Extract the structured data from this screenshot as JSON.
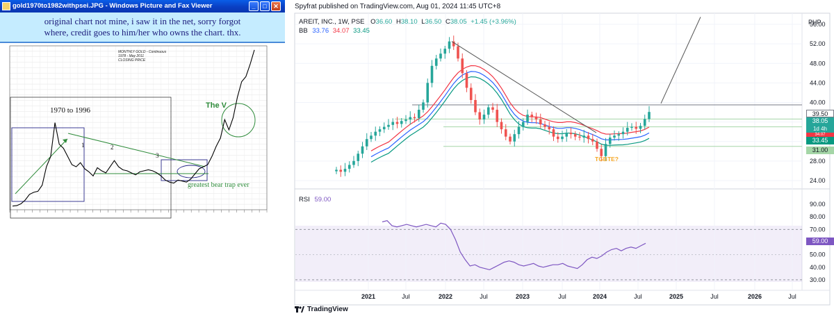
{
  "viewer": {
    "title": "gold1970to1982withpsei.JPG - Windows Picture and Fax Viewer",
    "minimize": "_",
    "maximize": "□",
    "close": "✕",
    "caption_line1": "original chart not mine, i saw it in the net, sorry forgot",
    "caption_line2": "where, credit goes to him/her who owns the chart. thx.",
    "chart_title1": "MONTHLY GOLD - Continuous",
    "chart_title2": "1978 - May 2011",
    "chart_title3": "CLOSING PRICE",
    "annot_1970": "1970 to 1996",
    "annot_v": "The V",
    "annot_trap": "greatest bear trap ever",
    "annot_n1": "1",
    "annot_n2": "2",
    "annot_n3": "3"
  },
  "tv": {
    "published": "Spyfrat published on TradingView.com, Aug 01, 2024 11:45 UTC+8",
    "symbol_line": "AREIT, INC., 1W, PSE",
    "ohlc": {
      "o_label": "O",
      "o": "36.60",
      "h_label": "H",
      "h": "38.10",
      "l_label": "L",
      "l": "36.50",
      "c_label": "C",
      "c": "38.05",
      "change": "+1.45 (+3.96%)"
    },
    "bb_label": "BB",
    "bb_values": [
      "33.76",
      "34.07",
      "33.45"
    ],
    "rsi_label": "RSI",
    "rsi_value": "59.00",
    "currency": "PHP",
    "annotation": "TGBTE?",
    "footer": "TradingView",
    "price_tags": {
      "p3950": "39.50",
      "p3805": "38.05",
      "tf": "1d 4h",
      "p3407": "34.07",
      "p3345": "33.45",
      "p3100": "31.00",
      "rsi": "59.00"
    },
    "colors": {
      "up": "#26a69a",
      "down": "#ef5350",
      "bb_upper": "#f23645",
      "bb_basis": "#2962ff",
      "bb_lower": "#089981",
      "rsi": "#7e57c2",
      "resistance": "#787b86",
      "support": "#a5d6a7"
    }
  },
  "chart_data": [
    {
      "type": "line",
      "title": "MONTHLY GOLD - Continuous",
      "subtitle": "1978 - May 2011",
      "ylabel": "",
      "xlabel": "",
      "series": [
        {
          "values": [
            36,
            40,
            58,
            95,
            150,
            170,
            180,
            240,
            420,
            520,
            850,
            640,
            600,
            520,
            440,
            420,
            460,
            400,
            370,
            330,
            410,
            380,
            360,
            420,
            480,
            420,
            390,
            380,
            360,
            340,
            370,
            380,
            390,
            380,
            360,
            330,
            290,
            270,
            260,
            290,
            280,
            270,
            300,
            350,
            400,
            420,
            440,
            520,
            620,
            700,
            880,
            780,
            900,
            1100,
            1250,
            1300,
            1420,
            1560
          ]
        }
      ],
      "annotations": [
        "1970 to 1996",
        "The V",
        "greatest bear trap ever",
        "1",
        "2",
        "3"
      ]
    },
    {
      "type": "line",
      "title": "AREIT, INC., 1W, PSE",
      "x_ticks": [
        "2021",
        "Jul",
        "2022",
        "Jul",
        "2023",
        "Jul",
        "2024",
        "Jul",
        "2025",
        "Jul",
        "2026",
        "Jul"
      ],
      "y_ticks": [
        24.0,
        28.0,
        32.0,
        36.0,
        40.0,
        44.0,
        48.0,
        52.0,
        56.0
      ],
      "ylim": [
        22,
        58
      ],
      "series": [
        {
          "values": [
            26.2,
            25.8,
            26.4,
            27.2,
            28.0,
            29.5,
            31.0,
            32.5,
            33.2,
            34.0,
            34.5,
            35.0,
            35.4,
            36.0,
            35.6,
            36.2,
            36.5,
            37.0,
            36.8,
            38.5,
            40.0,
            44.0,
            47.5,
            49.0,
            50.0,
            51.0,
            52.5,
            51.5,
            49.0,
            46.0,
            43.0,
            40.5,
            38.0,
            36.5,
            37.5,
            39.0,
            38.5,
            36.0,
            34.5,
            33.0,
            32.0,
            33.5,
            35.0,
            36.0,
            37.5,
            37.0,
            36.5,
            35.5,
            35.0,
            34.5,
            33.0,
            32.5,
            33.0,
            33.8,
            33.5,
            33.0,
            32.8,
            33.2,
            32.5,
            32.0,
            30.5,
            29.0,
            31.5,
            32.8,
            33.2,
            33.5,
            34.0,
            34.8,
            35.0,
            34.6,
            35.2,
            36.6,
            38.05
          ]
        }
      ],
      "last_close": 38.05,
      "levels": [
        39.5,
        34.07,
        33.45,
        31.0
      ],
      "rsi": {
        "ylim": [
          25,
          95
        ],
        "y_ticks": [
          30.0,
          40.0,
          50.0,
          60.0,
          70.0,
          80.0,
          90.0
        ],
        "bands": [
          30,
          70
        ],
        "values": [
          76,
          77,
          73,
          72,
          73,
          74,
          73,
          72,
          73,
          74,
          73,
          72,
          75,
          74,
          70,
          62,
          52,
          46,
          41,
          42,
          40,
          39,
          38,
          40,
          42,
          44,
          45,
          44,
          42,
          41,
          42,
          43,
          41,
          40,
          41,
          42,
          42,
          43,
          41,
          40,
          39,
          42,
          46,
          48,
          47,
          49,
          52,
          54,
          55,
          53,
          55,
          56,
          55,
          57,
          59
        ]
      }
    }
  ]
}
